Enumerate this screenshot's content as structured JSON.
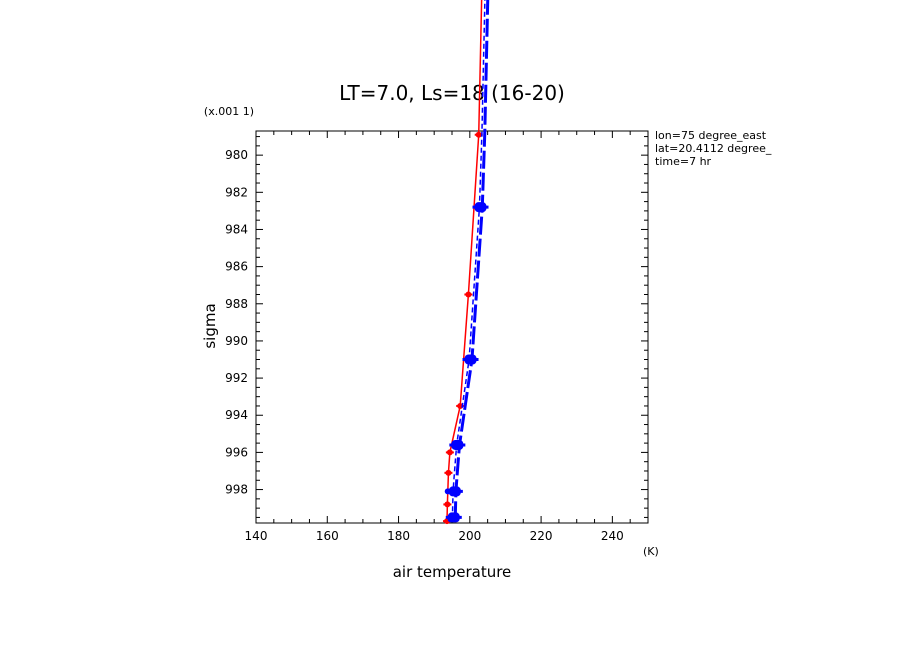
{
  "chart_data": {
    "type": "line",
    "title": "LT=7.0, Ls=18 (16-20)",
    "xlabel": "air temperature",
    "xunit": "(K)",
    "ylabel": "sigma",
    "yunit": "(x.001 1)",
    "xlim": [
      140,
      250
    ],
    "ylim": [
      999.8,
      978.7
    ],
    "xticks": [
      "140",
      "160",
      "180",
      "200",
      "220",
      "240"
    ],
    "yticks": [
      "980",
      "982",
      "984",
      "986",
      "988",
      "990",
      "992",
      "994",
      "996",
      "998"
    ],
    "info": [
      "lon=75 degree_east",
      "lat=20.4112 degree_",
      "time=7 hr"
    ],
    "series": [
      {
        "color": "#ff0000",
        "style": "solid",
        "x": [
          193.6,
          193.7,
          194.0,
          194.4,
          197.3,
          199.6,
          202.5,
          203.5
        ],
        "y": [
          999.7,
          998.8,
          997.1,
          996.0,
          993.5,
          987.5,
          978.9,
          970.0
        ]
      },
      {
        "color": "#0000ff",
        "style": "dashed",
        "x": [
          195.1,
          195.3,
          195.6,
          196.3,
          199.8,
          202.7,
          203.4,
          205.0
        ],
        "y": [
          999.6,
          998.1,
          997.3,
          995.6,
          991.0,
          982.8,
          978.8,
          965.0
        ]
      },
      {
        "color": "#0000ff",
        "style": "markers",
        "x": [
          195.5,
          195.8,
          196.5,
          200.2,
          203.0
        ],
        "y": [
          999.5,
          998.1,
          995.6,
          991.0,
          982.8
        ]
      }
    ]
  }
}
